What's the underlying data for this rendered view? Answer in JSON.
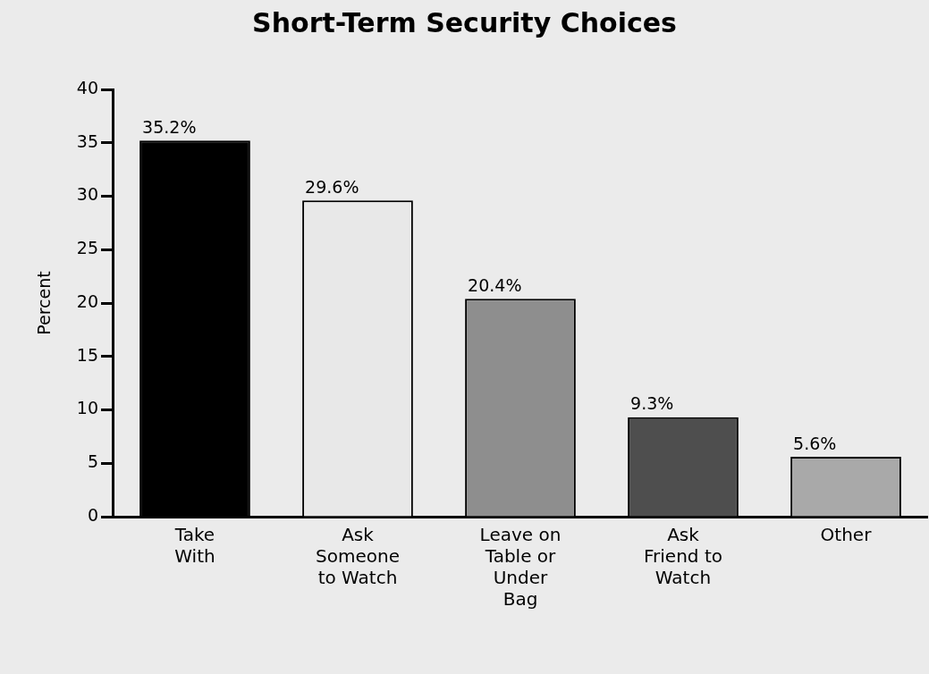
{
  "chart_data": {
    "type": "bar",
    "title": "Short-Term Security Choices",
    "ylabel": "Percent",
    "categories": [
      "Take With",
      "Ask Someone to Watch",
      "Leave on Table or Under Bag",
      "Ask Friend to Watch",
      "Other"
    ],
    "values": [
      35.2,
      29.6,
      20.4,
      9.3,
      5.6
    ],
    "colors": [
      "#000000",
      "#e8e8e8",
      "#8e8e8e",
      "#4e4e4e",
      "#a9a9a9"
    ],
    "value_labels": [
      "35.2%",
      "29.6%",
      "20.4%",
      "9.3%",
      "5.6%"
    ],
    "ylim": [
      0,
      40
    ],
    "yticks": [
      0,
      5,
      10,
      15,
      20,
      25,
      30,
      35,
      40
    ],
    "grid": false,
    "legend": false
  }
}
